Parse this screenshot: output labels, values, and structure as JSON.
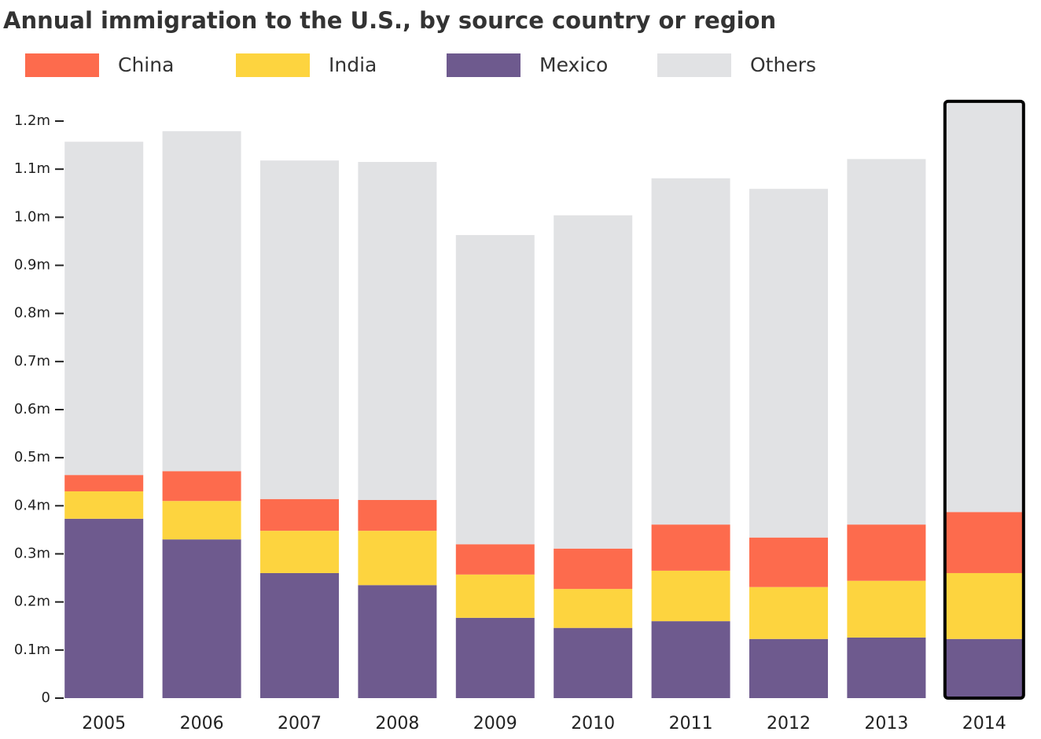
{
  "chart_data": {
    "type": "stacked_bar",
    "title": "Annual immigration to the U.S., by source country or region",
    "categories": [
      "2005",
      "2006",
      "2007",
      "2008",
      "2009",
      "2010",
      "2011",
      "2012",
      "2013",
      "2014"
    ],
    "series": [
      {
        "name": "Mexico",
        "color": "#6e5a8e",
        "values": [
          0.373,
          0.33,
          0.26,
          0.235,
          0.167,
          0.146,
          0.16,
          0.123,
          0.126,
          0.123
        ]
      },
      {
        "name": "India",
        "color": "#fdd43f",
        "values": [
          0.057,
          0.08,
          0.088,
          0.113,
          0.09,
          0.081,
          0.105,
          0.108,
          0.118,
          0.137
        ]
      },
      {
        "name": "China",
        "color": "#fd6b4d",
        "values": [
          0.034,
          0.062,
          0.066,
          0.064,
          0.063,
          0.084,
          0.096,
          0.103,
          0.117,
          0.127
        ]
      },
      {
        "name": "Others",
        "color": "#e1e2e4",
        "values": [
          0.693,
          0.707,
          0.704,
          0.703,
          0.643,
          0.693,
          0.72,
          0.725,
          0.76,
          0.854
        ]
      }
    ],
    "legend_order": [
      "China",
      "India",
      "Mexico",
      "Others"
    ],
    "ylim": [
      0,
      1.2
    ],
    "yticks": [
      0,
      {
        "value": 0.1,
        "label": "0.1m"
      },
      {
        "value": 0.2,
        "label": "0.2m"
      },
      {
        "value": 0.3,
        "label": "0.3m"
      },
      {
        "value": 0.4,
        "label": "0.4m"
      },
      {
        "value": 0.5,
        "label": "0.5m"
      },
      {
        "value": 0.6,
        "label": "0.6m"
      },
      {
        "value": 0.7,
        "label": "0.7m"
      },
      {
        "value": 0.8,
        "label": "0.8m"
      },
      {
        "value": 0.9,
        "label": "0.9m"
      },
      {
        "value": 1.0,
        "label": "1.0m"
      },
      {
        "value": 1.1,
        "label": "1.1m"
      },
      {
        "value": 1.2,
        "label": "1.2m"
      }
    ],
    "grid": false,
    "highlighted": "2014"
  }
}
